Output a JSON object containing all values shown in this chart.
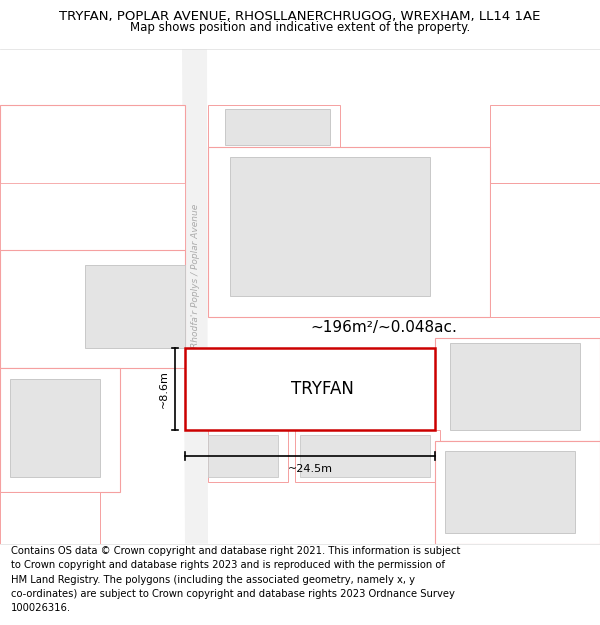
{
  "title_line1": "TRYFAN, POPLAR AVENUE, RHOSLLANERCHRUGOG, WREXHAM, LL14 1AE",
  "title_line2": "Map shows position and indicative extent of the property.",
  "footer": "Contains OS data © Crown copyright and database right 2021. This information is subject to Crown copyright and database rights 2023 and is reproduced with the permission of HM Land Registry. The polygons (including the associated geometry, namely x, y co-ordinates) are subject to Crown copyright and database rights 2023 Ordnance Survey 100026316.",
  "bg_color": "#ffffff",
  "map_bg": "#ffffff",
  "building_fill": "#e4e4e4",
  "building_edge_pink": "#f5a0a0",
  "tryfan_edge": "#cc0000",
  "street_label": "Rhodfa'r Poplys / Poplar Avenue",
  "area_label": "~196m²/~0.048ac.",
  "property_label": "TRYFAN",
  "dim_width": "~24.5m",
  "dim_height": "~8.6m",
  "title_fontsize": 9.5,
  "subtitle_fontsize": 8.5,
  "footer_fontsize": 7.2
}
